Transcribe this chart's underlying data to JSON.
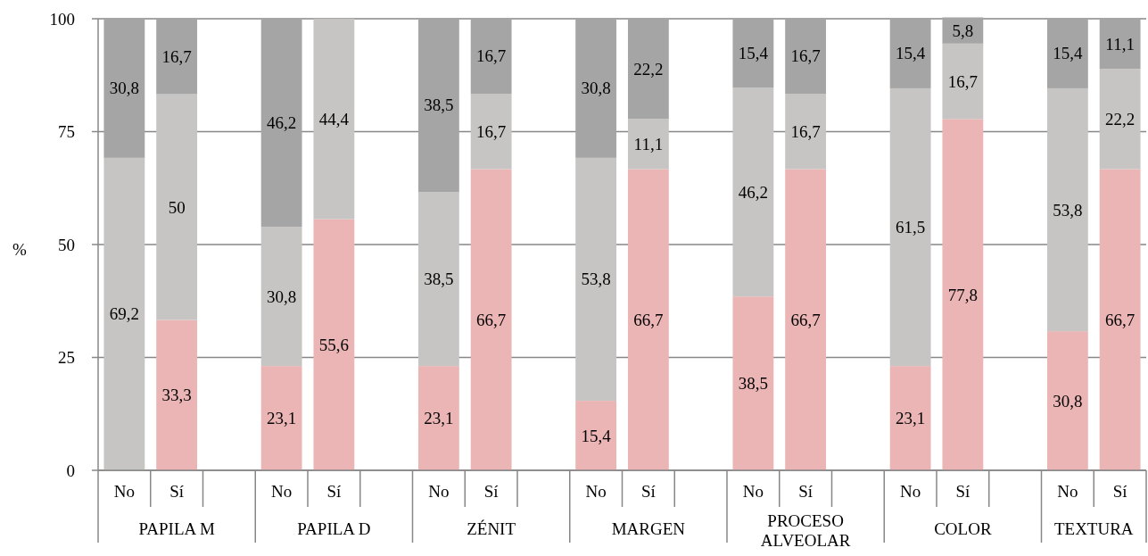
{
  "chart_data": {
    "type": "bar",
    "stacked": true,
    "ylabel": "%",
    "categories": [
      "No",
      "Sí",
      null,
      "No",
      "Sí",
      null,
      "No",
      "Sí",
      null,
      "No",
      "Sí",
      null,
      "No",
      "Sí",
      null,
      "No",
      "Sí",
      null,
      "No",
      "Sí"
    ],
    "series": [
      {
        "color": "#ebb5b5",
        "values": [
          null,
          33.3,
          null,
          23.1,
          55.6,
          null,
          23.1,
          66.7,
          null,
          15.4,
          66.7,
          null,
          38.5,
          66.7,
          null,
          23.1,
          77.8,
          null,
          30.8,
          66.7
        ],
        "value_labels": [
          null,
          "33,3",
          null,
          "23,1",
          "55,6",
          null,
          "23,1",
          "66,7",
          null,
          "15,4",
          "66,7",
          null,
          "38,5",
          "66,7",
          null,
          "23,1",
          "77,8",
          null,
          "30,8",
          "66,7"
        ]
      },
      {
        "color": "#c6c5c4",
        "values": [
          69.2,
          50,
          null,
          30.8,
          44.4,
          null,
          38.5,
          16.7,
          null,
          53.8,
          11.1,
          null,
          46.2,
          16.7,
          null,
          61.5,
          16.7,
          null,
          53.8,
          22.2
        ],
        "value_labels": [
          "69,2",
          "50",
          null,
          "30,8",
          "44,4",
          null,
          "38,5",
          "16,7",
          null,
          "53,8",
          "11,1",
          null,
          "46,2",
          "16,7",
          null,
          "61,5",
          "16,7",
          null,
          "53,8",
          "22,2"
        ]
      },
      {
        "color": "#a5a5a5",
        "values": [
          30.8,
          16.7,
          null,
          46.2,
          null,
          null,
          38.5,
          16.7,
          null,
          30.8,
          22.2,
          null,
          15.4,
          16.7,
          null,
          15.4,
          5.8,
          null,
          15.4,
          11.1
        ],
        "value_labels": [
          "30,8",
          "16,7",
          null,
          "46,2",
          null,
          null,
          "38,5",
          "16,7",
          null,
          "30,8",
          "22,2",
          null,
          "15,4",
          "16,7",
          null,
          "15,4",
          "5,8",
          null,
          "15,4",
          "11,1"
        ]
      }
    ],
    "ylim": [
      0,
      100
    ],
    "yticks": [
      0,
      25,
      50,
      75,
      100
    ],
    "grid": "y",
    "annotations": [
      "PAPILA M",
      "PAPILA D",
      "ZÉNIT",
      "MARGEN",
      "PROCESO ALVEOLAR",
      "COLOR",
      "TEXTURA"
    ]
  }
}
